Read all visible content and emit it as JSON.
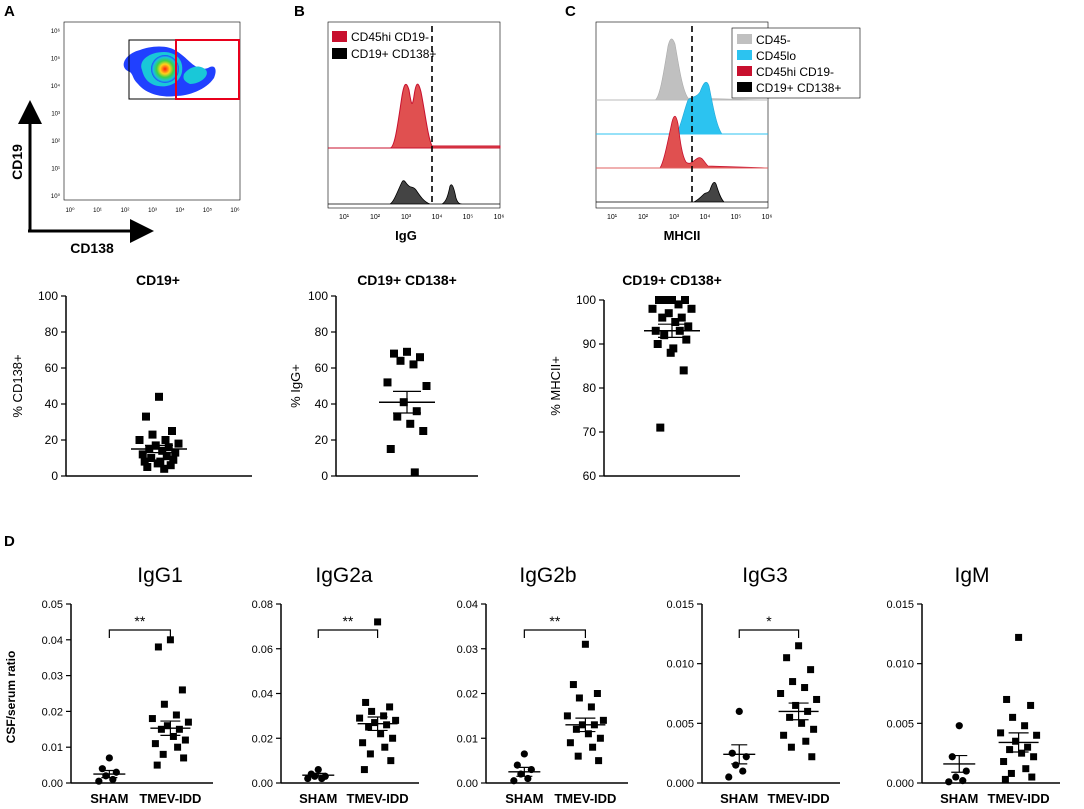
{
  "panel_letters": {
    "a": "A",
    "b": "B",
    "c": "C",
    "d": "D"
  },
  "colors": {
    "red": "#c8102e",
    "red_fill": "#e05050",
    "black": "#000000",
    "dark_gray": "#444444",
    "light_gray": "#c0c0c0",
    "cyan": "#2cc3f0",
    "gate_red": "#e8001c"
  },
  "flow_a": {
    "ylabel": "CD19",
    "xlabel": "CD138",
    "y_ticks": [
      "10⁰",
      "10¹",
      "10²",
      "10³",
      "10⁴",
      "10⁵",
      "10⁶"
    ],
    "x_ticks": [
      "10⁰",
      "10¹",
      "10²",
      "10³",
      "10⁴",
      "10⁵",
      "10⁶"
    ]
  },
  "flow_b": {
    "xlabel": "IgG",
    "legend": [
      {
        "label": "CD45hi CD19-",
        "color": "#c8102e"
      },
      {
        "label": "CD19+ CD138+",
        "color": "#000000"
      }
    ],
    "x_ticks": [
      "10¹",
      "10²",
      "10³",
      "10⁴",
      "10⁵",
      "10⁶"
    ]
  },
  "flow_c": {
    "xlabel": "MHCII",
    "legend": [
      {
        "label": "CD45-",
        "color": "#c0c0c0"
      },
      {
        "label": "CD45lo",
        "color": "#2cc3f0"
      },
      {
        "label": "CD45hi CD19-",
        "color": "#c8102e"
      },
      {
        "label": "CD19+ CD138+",
        "color": "#000000"
      }
    ],
    "x_ticks": [
      "10¹",
      "10²",
      "10³",
      "10⁴",
      "10⁵",
      "10⁶"
    ]
  },
  "chart_data": [
    {
      "id": "s1",
      "type": "scatter",
      "title": "CD19+",
      "ylabel": "% CD138+",
      "ylim": [
        0,
        100
      ],
      "yticks": [
        0,
        20,
        40,
        60,
        80,
        100
      ],
      "values": [
        44,
        33,
        25,
        23,
        20,
        20,
        18,
        17,
        16,
        15,
        14,
        13,
        12,
        11,
        10,
        9,
        8,
        8,
        7,
        6,
        5,
        4
      ],
      "mean": 15,
      "sem": 2
    },
    {
      "id": "s2",
      "type": "scatter",
      "title": "CD19+ CD138+",
      "ylabel": "% IgG+",
      "ylim": [
        0,
        100
      ],
      "yticks": [
        0,
        20,
        40,
        60,
        80,
        100
      ],
      "values": [
        69,
        68,
        66,
        64,
        62,
        52,
        50,
        41,
        36,
        33,
        29,
        25,
        15,
        2
      ],
      "mean": 41,
      "sem": 6
    },
    {
      "id": "s3",
      "type": "scatter",
      "title": "CD19+ CD138+",
      "ylabel": "% MHCII+",
      "ylim": [
        60,
        100
      ],
      "yticks": [
        60,
        70,
        80,
        90,
        100
      ],
      "values": [
        100,
        100,
        100,
        100,
        99,
        98,
        98,
        97,
        96,
        96,
        95,
        94,
        93,
        93,
        92,
        91,
        90,
        89,
        88,
        84,
        71
      ],
      "mean": 93,
      "sem": 1.5
    },
    {
      "id": "d1",
      "type": "scatter",
      "title": "IgG1",
      "ylabel": "CSF/serum ratio",
      "categories": [
        "SHAM",
        "TMEV-IDD"
      ],
      "ylim": [
        0,
        0.05
      ],
      "yticks": [
        "0.00",
        "0.01",
        "0.02",
        "0.03",
        "0.04",
        "0.05"
      ],
      "groups": [
        {
          "name": "SHAM",
          "marker": "circle",
          "values": [
            0.007,
            0.004,
            0.003,
            0.002,
            0.001,
            0.0005
          ],
          "mean": 0.0025,
          "sem": 0.001
        },
        {
          "name": "TMEV-IDD",
          "marker": "square",
          "values": [
            0.04,
            0.038,
            0.026,
            0.022,
            0.019,
            0.018,
            0.017,
            0.016,
            0.015,
            0.015,
            0.013,
            0.012,
            0.011,
            0.01,
            0.008,
            0.007,
            0.005
          ],
          "mean": 0.0153,
          "sem": 0.002
        }
      ],
      "significance": "**"
    },
    {
      "id": "d2",
      "type": "scatter",
      "title": "IgG2a",
      "ylabel": "",
      "categories": [
        "SHAM",
        "TMEV-IDD"
      ],
      "ylim": [
        0,
        0.08
      ],
      "yticks": [
        "0.00",
        "0.02",
        "0.04",
        "0.06",
        "0.08"
      ],
      "groups": [
        {
          "name": "SHAM",
          "marker": "circle",
          "values": [
            0.006,
            0.004,
            0.003,
            0.003,
            0.002,
            0.002
          ],
          "mean": 0.0035,
          "sem": 0.0008
        },
        {
          "name": "TMEV-IDD",
          "marker": "square",
          "values": [
            0.072,
            0.036,
            0.034,
            0.032,
            0.03,
            0.029,
            0.028,
            0.027,
            0.026,
            0.025,
            0.022,
            0.02,
            0.018,
            0.016,
            0.013,
            0.01,
            0.006
          ],
          "mean": 0.0265,
          "sem": 0.003
        }
      ],
      "significance": "**"
    },
    {
      "id": "d3",
      "type": "scatter",
      "title": "IgG2b",
      "ylabel": "",
      "categories": [
        "SHAM",
        "TMEV-IDD"
      ],
      "ylim": [
        0,
        0.04
      ],
      "yticks": [
        "0.00",
        "0.01",
        "0.02",
        "0.03",
        "0.04"
      ],
      "groups": [
        {
          "name": "SHAM",
          "marker": "circle",
          "values": [
            0.0065,
            0.004,
            0.003,
            0.002,
            0.001,
            0.0005
          ],
          "mean": 0.0025,
          "sem": 0.001
        },
        {
          "name": "TMEV-IDD",
          "marker": "square",
          "values": [
            0.031,
            0.022,
            0.02,
            0.019,
            0.017,
            0.015,
            0.014,
            0.013,
            0.013,
            0.012,
            0.011,
            0.01,
            0.009,
            0.008,
            0.006,
            0.005
          ],
          "mean": 0.013,
          "sem": 0.0015
        }
      ],
      "significance": "**"
    },
    {
      "id": "d4",
      "type": "scatter",
      "title": "IgG3",
      "ylabel": "",
      "categories": [
        "SHAM",
        "TMEV-IDD"
      ],
      "ylim": [
        0,
        0.015
      ],
      "yticks": [
        "0.000",
        "0.005",
        "0.010",
        "0.015"
      ],
      "groups": [
        {
          "name": "SHAM",
          "marker": "circle",
          "values": [
            0.006,
            0.0025,
            0.0022,
            0.0015,
            0.001,
            0.0005
          ],
          "mean": 0.0024,
          "sem": 0.0008
        },
        {
          "name": "TMEV-IDD",
          "marker": "square",
          "values": [
            0.0115,
            0.0105,
            0.0095,
            0.0085,
            0.008,
            0.0075,
            0.007,
            0.0065,
            0.006,
            0.0055,
            0.005,
            0.0045,
            0.004,
            0.0035,
            0.003,
            0.0022
          ],
          "mean": 0.006,
          "sem": 0.0007
        }
      ],
      "significance": "*"
    },
    {
      "id": "d5",
      "type": "scatter",
      "title": "IgM",
      "ylabel": "",
      "categories": [
        "SHAM",
        "TMEV-IDD"
      ],
      "ylim": [
        0,
        0.015
      ],
      "yticks": [
        "0.000",
        "0.005",
        "0.010",
        "0.015"
      ],
      "groups": [
        {
          "name": "SHAM",
          "marker": "circle",
          "values": [
            0.0048,
            0.0022,
            0.001,
            0.0005,
            0.0002,
            0.0001
          ],
          "mean": 0.0016,
          "sem": 0.0007
        },
        {
          "name": "TMEV-IDD",
          "marker": "square",
          "values": [
            0.0122,
            0.007,
            0.0065,
            0.0055,
            0.0048,
            0.0042,
            0.004,
            0.0035,
            0.003,
            0.0028,
            0.0025,
            0.0022,
            0.0018,
            0.0012,
            0.0008,
            0.0005,
            0.0003
          ],
          "mean": 0.0034,
          "sem": 0.0008
        }
      ],
      "significance": ""
    }
  ]
}
